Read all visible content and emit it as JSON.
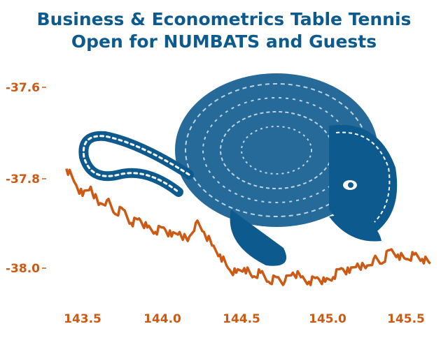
{
  "title_line1": "Business & Econometrics Table Tennis",
  "title_line2": "Open for NUMBATS and Guests",
  "colors": {
    "title": "#0d5a8e",
    "line": "#cc5a14",
    "numbat": "#0d5a8e",
    "ticks": "#cc5a14"
  },
  "chart_data": {
    "type": "line",
    "title": "Business & Econometrics Table Tennis Open for NUMBATS and Guests",
    "xlabel": "",
    "ylabel": "",
    "xlim": [
      143.3,
      145.7
    ],
    "ylim": [
      -38.07,
      -37.55
    ],
    "x_ticks": [
      143.5,
      144.0,
      144.5,
      145.0,
      145.5
    ],
    "x_tick_labels": [
      "143.5",
      "144.0",
      "144.5",
      "145.0",
      "145.5"
    ],
    "y_ticks": [
      -37.6,
      -37.8,
      -38.0
    ],
    "y_tick_labels": [
      "-37.6",
      "-37.8",
      "-38.0"
    ],
    "grid": false,
    "background_image": "numbat-illustration",
    "series": [
      {
        "x": [
          143.4,
          143.45,
          143.5,
          143.55,
          143.6,
          143.65,
          143.7,
          143.75,
          143.8,
          143.85,
          143.9,
          143.95,
          144.0,
          144.05,
          144.1,
          144.15,
          144.2,
          144.25,
          144.3,
          144.35,
          144.4,
          144.45,
          144.5,
          144.55,
          144.6,
          144.65,
          144.7,
          144.75,
          144.8,
          144.85,
          144.9,
          144.95,
          145.0,
          145.05,
          145.1,
          145.15,
          145.2,
          145.25,
          145.3,
          145.35,
          145.4,
          145.45,
          145.5,
          145.55,
          145.6,
          145.65
        ],
        "y": [
          -37.78,
          -37.81,
          -37.84,
          -37.82,
          -37.86,
          -37.85,
          -37.88,
          -37.87,
          -37.9,
          -37.89,
          -37.91,
          -37.92,
          -37.91,
          -37.93,
          -37.92,
          -37.94,
          -37.9,
          -37.92,
          -37.95,
          -37.97,
          -38.0,
          -38.01,
          -38.0,
          -38.02,
          -38.01,
          -38.03,
          -38.02,
          -38.03,
          -38.01,
          -38.02,
          -38.03,
          -38.02,
          -38.03,
          -38.02,
          -38.0,
          -38.01,
          -37.99,
          -38.0,
          -37.98,
          -37.99,
          -37.96,
          -37.97,
          -37.98,
          -37.97,
          -37.98,
          -37.99
        ]
      }
    ]
  }
}
